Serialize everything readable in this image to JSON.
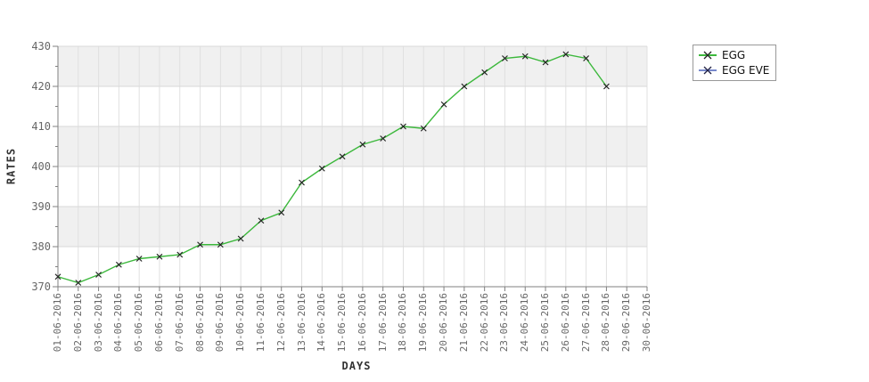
{
  "chart_data": {
    "type": "line",
    "title": "",
    "xlabel": "DAYS",
    "ylabel": "RATES",
    "ylim": [
      370,
      430
    ],
    "y_major_ticks": [
      370,
      380,
      390,
      400,
      410,
      420,
      430
    ],
    "y_minor_step": 5,
    "grid": true,
    "legend_position": "top-right",
    "x_categories": [
      "01-06-2016",
      "02-06-2016",
      "03-06-2016",
      "04-06-2016",
      "05-06-2016",
      "06-06-2016",
      "07-06-2016",
      "08-06-2016",
      "09-06-2016",
      "10-06-2016",
      "11-06-2016",
      "12-06-2016",
      "13-06-2016",
      "14-06-2016",
      "15-06-2016",
      "16-06-2016",
      "17-06-2016",
      "18-06-2016",
      "19-06-2016",
      "20-06-2016",
      "21-06-2016",
      "22-06-2016",
      "23-06-2016",
      "24-06-2016",
      "25-06-2016",
      "26-06-2016",
      "27-06-2016",
      "28-06-2016",
      "29-06-2016",
      "30-06-2016"
    ],
    "series": [
      {
        "name": "EGG",
        "color": "#3cb83c",
        "marker": "x",
        "marker_color": "#222222",
        "values": [
          372.5,
          371,
          373,
          375.5,
          377,
          377.5,
          378,
          380.5,
          380.5,
          382,
          386.5,
          388.5,
          396,
          399.5,
          402.5,
          405.5,
          407,
          410,
          409.5,
          415.5,
          420,
          423.5,
          427,
          427.5,
          426,
          428,
          427,
          420
        ]
      },
      {
        "name": "EGG EVE",
        "color": "#7788cc",
        "marker": "x",
        "marker_color": "#222244",
        "values": []
      }
    ],
    "colors": {
      "band_light": "#ffffff",
      "band_dark": "#f0f0f0",
      "grid_vertical": "#e0e0e0",
      "grid_horizontal": "#d9d9d9",
      "axis": "#808080",
      "tick_label": "#666666",
      "axis_title": "#333333"
    }
  }
}
